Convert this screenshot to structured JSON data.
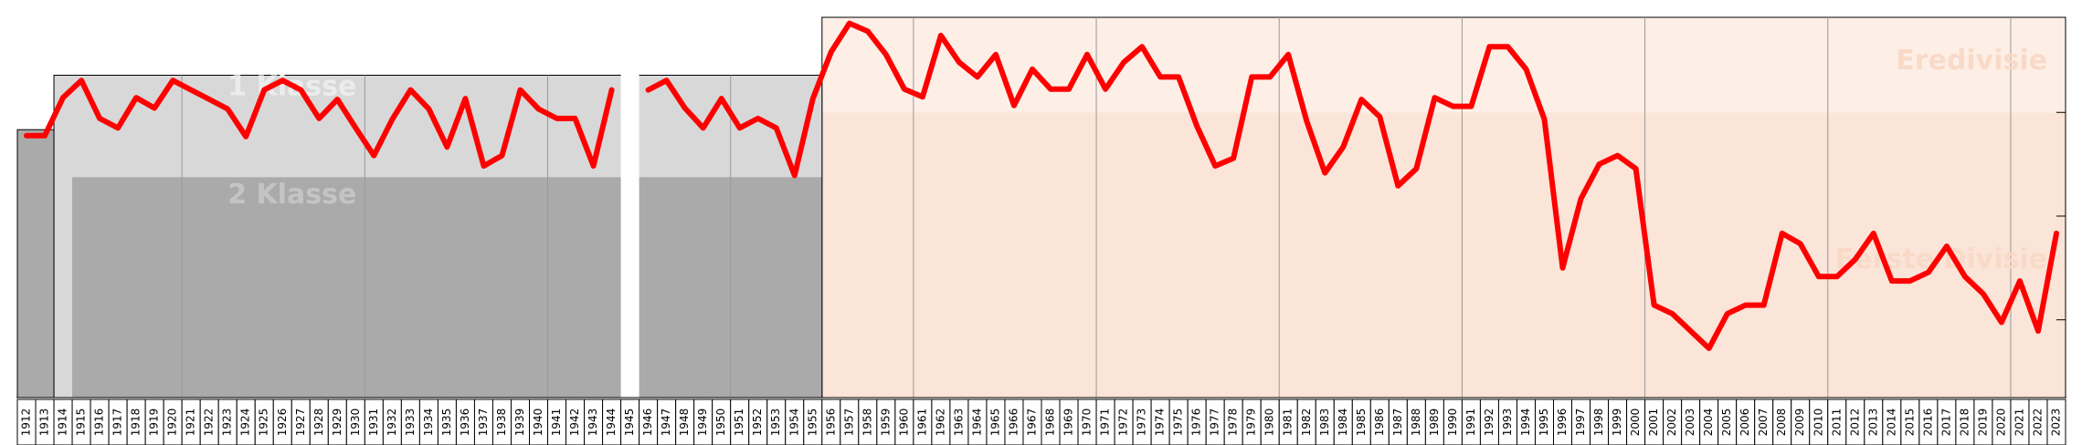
{
  "chart_data": {
    "type": "line",
    "title": "",
    "xlabel": "",
    "ylabel": "",
    "x_start": 1912,
    "x_end": 2023,
    "gaps": [
      1945
    ],
    "ylim": [
      1,
      45
    ],
    "y_inverted": true,
    "grid": true,
    "line_color": "#ff0000",
    "tiers": [
      {
        "label": "Eredivisie",
        "color": "#fdefe6",
        "text_color": "#f9dac8"
      },
      {
        "label": "Eerste Divisie",
        "color": "#fbe4d8",
        "text_color": "#f9dac8"
      },
      {
        "label": "1 Klasse",
        "color": "#d8d8d8",
        "text_color": "#ececec"
      },
      {
        "label": "2 Klasse",
        "color": "#aaaaaa",
        "text_color": "#c4c4c4"
      }
    ],
    "series": [
      {
        "name": "",
        "x": [
          1912,
          1913,
          1914,
          1915,
          1916,
          1917,
          1918,
          1919,
          1920,
          1921,
          1922,
          1923,
          1924,
          1925,
          1926,
          1927,
          1928,
          1929,
          1930,
          1931,
          1932,
          1933,
          1934,
          1935,
          1936,
          1937,
          1938,
          1939,
          1940,
          1941,
          1942,
          1943,
          1944,
          1946,
          1947,
          1948,
          1949,
          1950,
          1951,
          1952,
          1953,
          1954,
          1955,
          1956,
          1957,
          1958,
          1959,
          1960,
          1961,
          1962,
          1963,
          1964,
          1965,
          1966,
          1967,
          1968,
          1969,
          1970,
          1971,
          1972,
          1973,
          1974,
          1975,
          1976,
          1977,
          1978,
          1979,
          1980,
          1981,
          1982,
          1983,
          1984,
          1985,
          1986,
          1987,
          1988,
          1989,
          1990,
          1991,
          1992,
          1993,
          1994,
          1995,
          1996,
          1997,
          1998,
          1999,
          2000,
          2001,
          2002,
          2003,
          2004,
          2005,
          2006,
          2007,
          2008,
          2009,
          2010,
          2011,
          2012,
          2013,
          2014,
          2015,
          2016,
          2017,
          2018,
          2019,
          2020,
          2021,
          2022,
          2023
        ],
        "y": [
          14.7,
          14.7,
          10.3,
          8.3,
          12.7,
          13.8,
          10.3,
          11.5,
          8.3,
          9.4,
          10.5,
          11.6,
          14.8,
          9.4,
          8.3,
          9.4,
          12.7,
          10.5,
          13.8,
          17.0,
          12.8,
          9.4,
          11.6,
          16.0,
          10.4,
          18.2,
          17.0,
          9.4,
          11.6,
          12.7,
          12.7,
          18.2,
          9.4,
          9.4,
          8.3,
          11.5,
          13.8,
          10.4,
          13.8,
          12.7,
          13.8,
          19.3,
          10.4,
          5.0,
          1.7,
          2.6,
          5.3,
          9.3,
          10.2,
          3.1,
          6.2,
          7.9,
          5.3,
          11.2,
          7.0,
          9.3,
          9.3,
          5.3,
          9.3,
          6.2,
          4.4,
          7.9,
          7.9,
          13.6,
          18.2,
          17.3,
          7.9,
          7.9,
          5.3,
          13.0,
          19.0,
          16.0,
          10.5,
          12.5,
          20.5,
          18.5,
          10.3,
          11.3,
          11.3,
          4.4,
          4.4,
          7.0,
          12.8,
          30.0,
          22.0,
          18.0,
          17.0,
          18.5,
          34.3,
          35.3,
          37.3,
          39.3,
          35.3,
          34.3,
          34.3,
          26.0,
          27.2,
          31.0,
          31.0,
          29.0,
          26.0,
          31.5,
          31.5,
          30.5,
          27.5,
          31.0,
          33.0,
          36.3,
          31.5,
          37.3,
          26.0
        ]
      }
    ],
    "regions": [
      {
        "x0": 1911.5,
        "x1": 1913.5,
        "top": 14.0
      },
      {
        "x0": 1913.5,
        "x1": 1955.5,
        "top": 7.7
      },
      {
        "x0": 1955.5,
        "x1": 2023.5,
        "top": 0.0
      }
    ]
  }
}
